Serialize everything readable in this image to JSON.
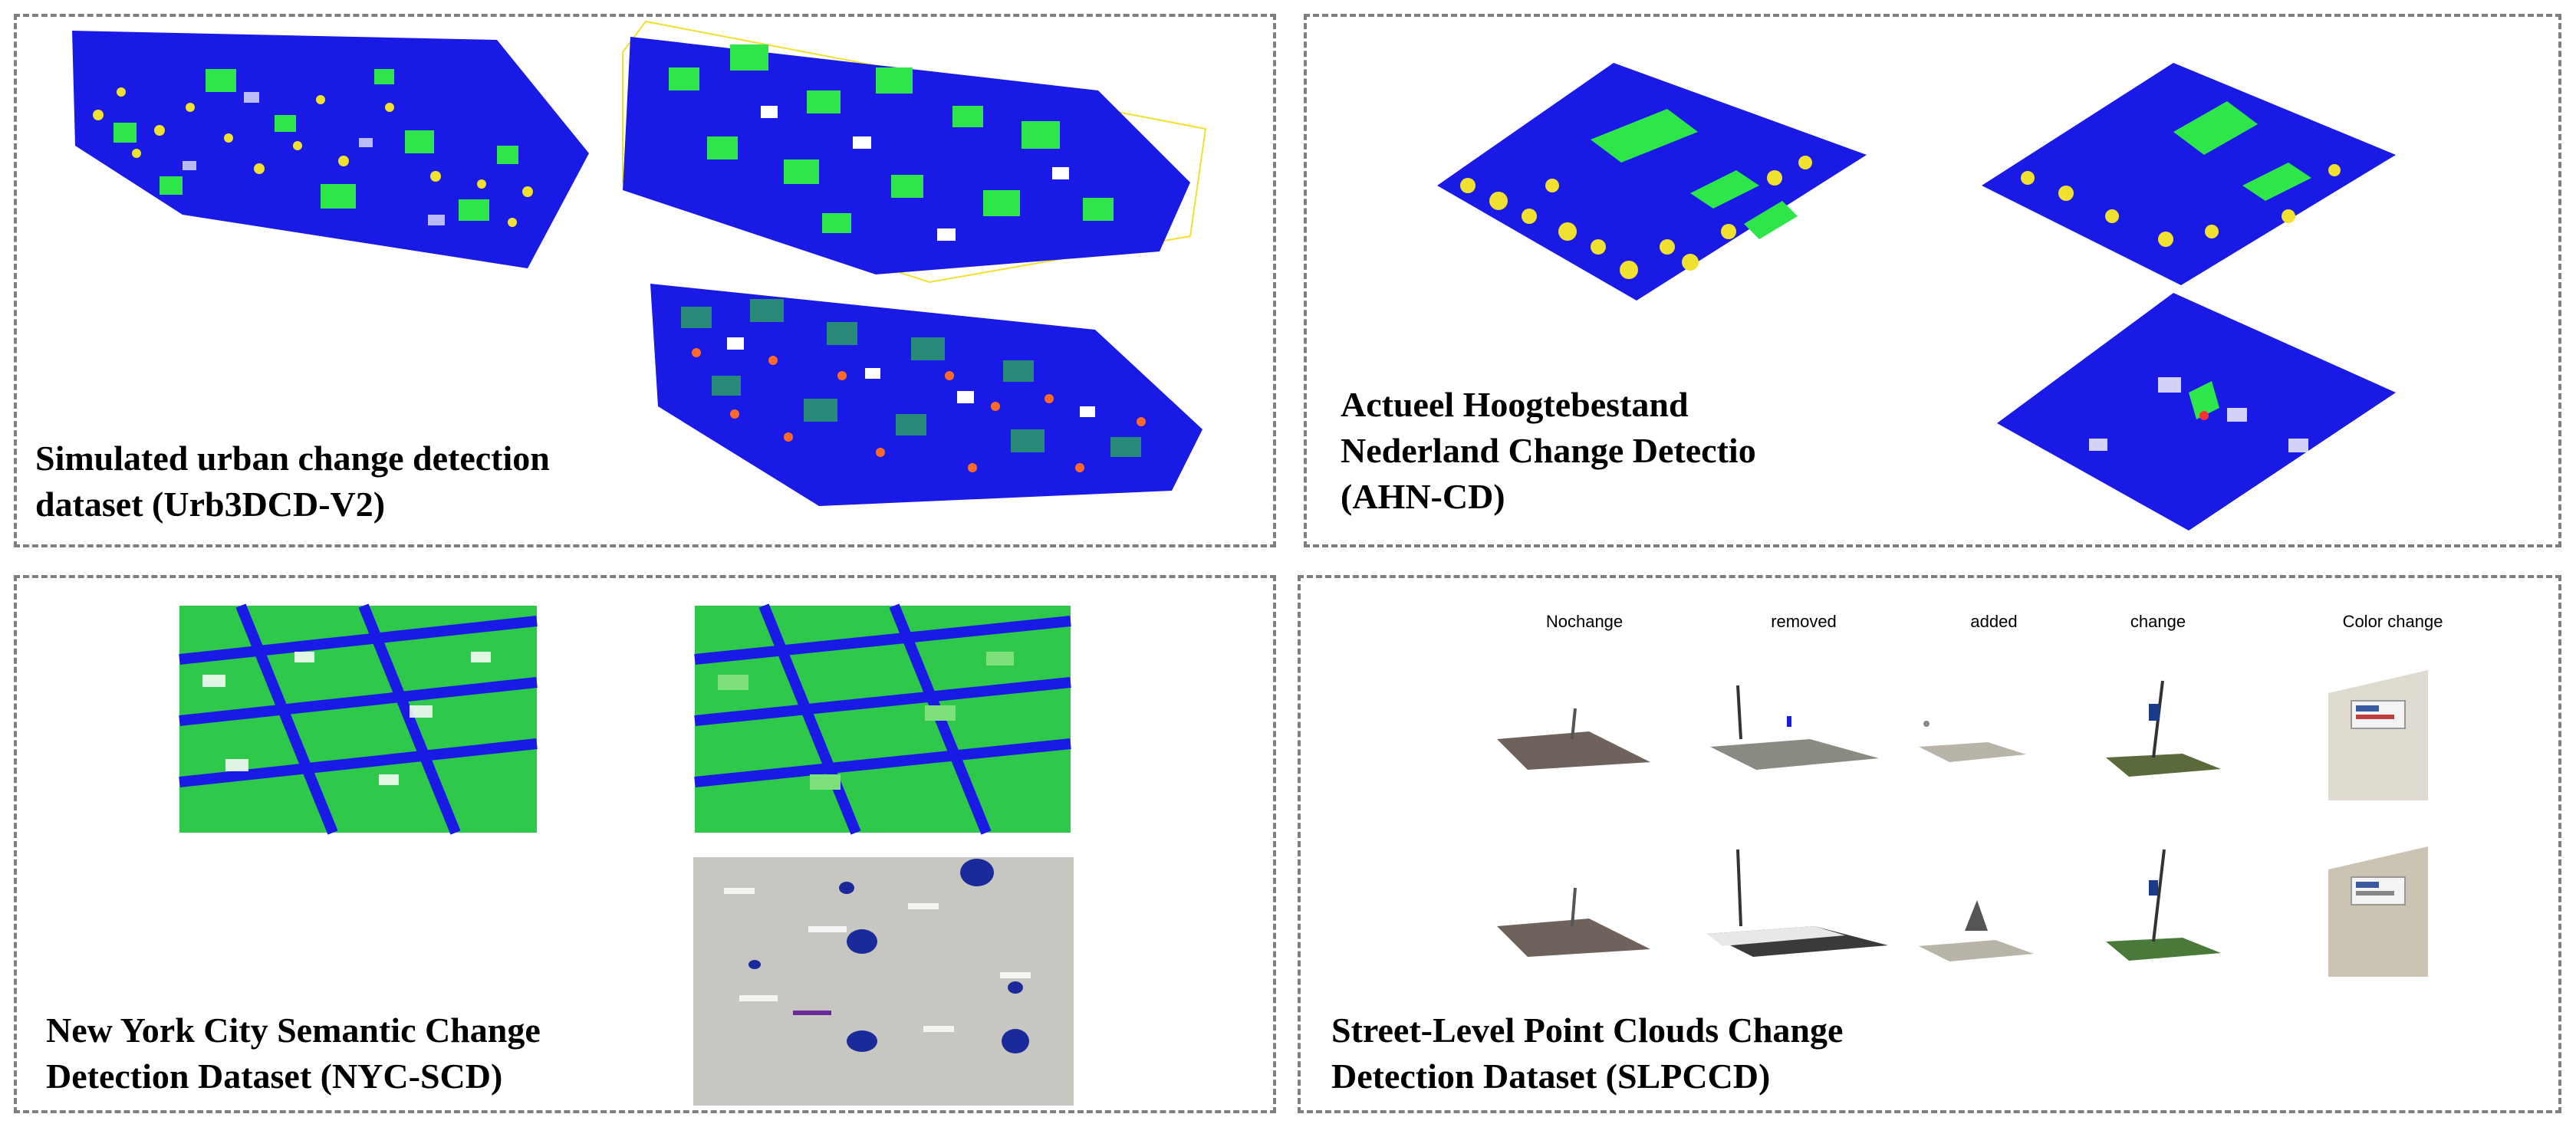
{
  "panels": {
    "urb3dcd": {
      "title_lines": [
        "Simulated urban change detection",
        "dataset (Urb3DCD-V2)"
      ]
    },
    "ahn": {
      "title_lines": [
        "Actueel Hoogtebestand",
        "Nederland Change Detectio",
        "(AHN-CD)"
      ]
    },
    "nyc": {
      "title_lines": [
        "New York City Semantic Change",
        "Detection Dataset (NYC-SCD)"
      ]
    },
    "slpccd": {
      "title_lines": [
        "Street-Level Point Clouds Change",
        "Detection Dataset (SLPCCD)"
      ],
      "column_labels": [
        "Nochange",
        "removed",
        "added",
        "change",
        "Color change"
      ]
    }
  },
  "colors": {
    "ground": "#1a1ae6",
    "building": "#2ee64a",
    "vegetation": "#f0e030",
    "changed": "#ff6a2a",
    "gray_diff": "#c8c6c0",
    "border": "#7f7f7f"
  }
}
